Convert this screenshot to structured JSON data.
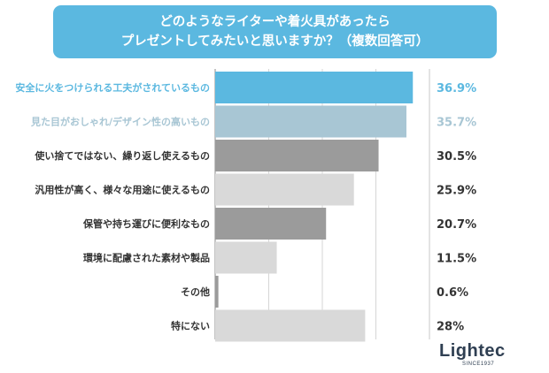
{
  "header": {
    "title_line1": "どのようなライターや着火具があったら",
    "title_line2": "プレゼントしてみたいと思いますか？（複数回答可）"
  },
  "brand": {
    "name": "Lightec",
    "sub": "SINCE1937"
  },
  "chart_data": {
    "type": "bar",
    "orientation": "horizontal",
    "title": "どのようなライターや着火具があったら プレゼントしてみたいと思いますか？（複数回答可）",
    "categories": [
      "安全に火をつけられる工夫がされているもの",
      "見た目がおしゃれ/デザイン性の高いもの",
      "使い捨てではない、繰り返し使えるもの",
      "汎用性が高く、様々な用途に使えるもの",
      "保管や持ち運びに便利なもの",
      "環境に配慮された素材や製品",
      "その他",
      "特にない"
    ],
    "values": [
      36.9,
      35.7,
      30.5,
      25.9,
      20.7,
      11.5,
      0.6,
      28
    ],
    "value_labels": [
      "36.9%",
      "35.7%",
      "30.5%",
      "25.9%",
      "20.7%",
      "11.5%",
      "0.6%",
      "28%"
    ],
    "bar_colors": [
      "#5bb8e0",
      "#a8c6d4",
      "#9b9b9b",
      "#d9d9d9",
      "#9b9b9b",
      "#d9d9d9",
      "#9b9b9b",
      "#d9d9d9"
    ],
    "category_label_colors": [
      "#5bb8e0",
      "#a8c6d4",
      "#333333",
      "#333333",
      "#333333",
      "#333333",
      "#333333",
      "#333333"
    ],
    "value_label_colors": [
      "#5bb8e0",
      "#a8c6d4",
      "#333333",
      "#333333",
      "#333333",
      "#333333",
      "#333333",
      "#333333"
    ],
    "xlim": [
      0,
      40
    ],
    "grid": true,
    "legend": "none"
  }
}
